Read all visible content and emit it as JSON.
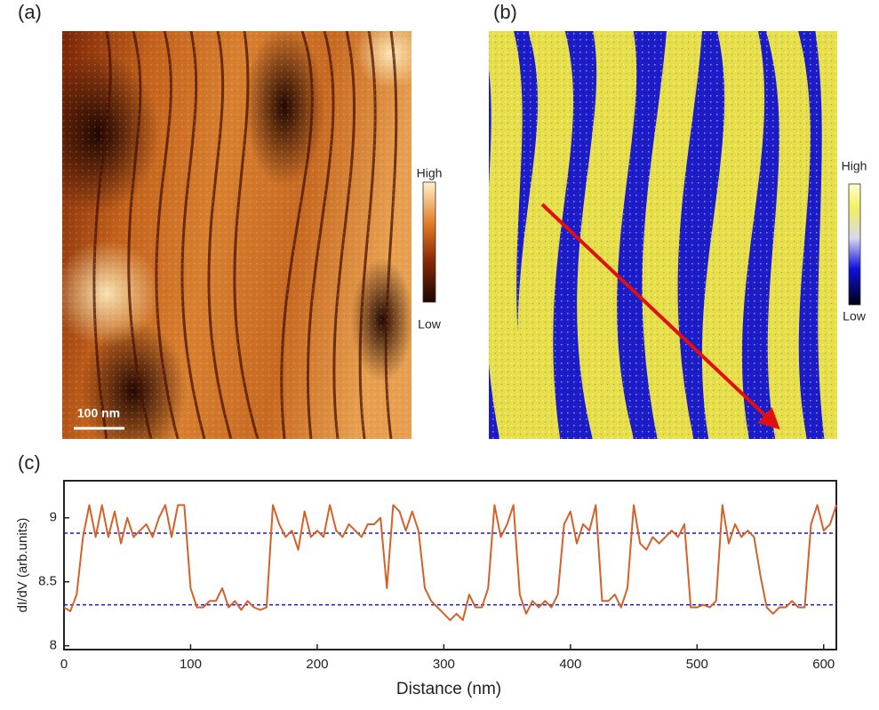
{
  "panels": {
    "a": {
      "label": "(a)",
      "scale_bar": "100 nm",
      "colorbar": {
        "high": "High",
        "low": "Low"
      }
    },
    "b": {
      "label": "(b)",
      "colorbar": {
        "high": "High",
        "low": "Low"
      }
    },
    "c": {
      "label": "(c)"
    }
  },
  "chart_data": {
    "type": "line",
    "x_label": "Distance (nm)",
    "y_label": "dI/dV (arb.units)",
    "color": "#d2622a",
    "x": [
      0,
      5,
      10,
      15,
      20,
      25,
      30,
      35,
      40,
      45,
      50,
      55,
      60,
      65,
      70,
      75,
      80,
      85,
      90,
      95,
      100,
      105,
      110,
      115,
      120,
      125,
      130,
      135,
      140,
      145,
      150,
      155,
      160,
      165,
      170,
      175,
      180,
      185,
      190,
      195,
      200,
      205,
      210,
      215,
      220,
      225,
      230,
      235,
      240,
      245,
      250,
      255,
      260,
      265,
      270,
      275,
      280,
      285,
      290,
      295,
      300,
      305,
      310,
      315,
      320,
      325,
      330,
      335,
      340,
      345,
      350,
      355,
      360,
      365,
      370,
      375,
      380,
      385,
      390,
      395,
      400,
      405,
      410,
      415,
      420,
      425,
      430,
      435,
      440,
      445,
      450,
      455,
      460,
      465,
      470,
      475,
      480,
      485,
      490,
      495,
      500,
      505,
      510,
      515,
      520,
      525,
      530,
      535,
      540,
      545,
      550,
      555,
      560,
      565,
      570,
      575,
      580,
      585,
      590,
      595,
      600,
      605,
      610
    ],
    "values": [
      8.3,
      8.27,
      8.4,
      8.85,
      9.1,
      8.85,
      9.1,
      8.85,
      9.05,
      8.8,
      9.0,
      8.85,
      8.9,
      8.95,
      8.85,
      9.0,
      9.1,
      8.85,
      9.1,
      9.1,
      8.45,
      8.3,
      8.3,
      8.35,
      8.35,
      8.45,
      8.3,
      8.35,
      8.28,
      8.35,
      8.3,
      8.28,
      8.3,
      9.1,
      8.95,
      8.85,
      8.9,
      8.75,
      9.05,
      8.85,
      8.9,
      8.85,
      9.1,
      8.9,
      8.85,
      8.95,
      8.9,
      8.85,
      8.95,
      8.95,
      9.0,
      8.45,
      9.1,
      9.05,
      8.9,
      9.05,
      8.9,
      8.45,
      8.35,
      8.3,
      8.25,
      8.2,
      8.25,
      8.2,
      8.4,
      8.3,
      8.3,
      8.45,
      9.1,
      8.85,
      8.95,
      9.1,
      8.4,
      8.25,
      8.35,
      8.3,
      8.35,
      8.3,
      8.4,
      8.95,
      9.05,
      8.8,
      8.95,
      8.9,
      9.1,
      8.35,
      8.35,
      8.4,
      8.3,
      8.45,
      9.1,
      8.8,
      8.75,
      8.85,
      8.8,
      8.85,
      8.9,
      8.85,
      8.95,
      8.3,
      8.3,
      8.32,
      8.3,
      8.35,
      9.1,
      8.8,
      8.95,
      8.85,
      8.9,
      8.85,
      8.55,
      8.3,
      8.25,
      8.3,
      8.3,
      8.35,
      8.3,
      8.3,
      8.95,
      9.1,
      8.9,
      8.95,
      9.1
    ],
    "xlim": [
      0,
      610
    ],
    "ylim": [
      7.97,
      9.29
    ],
    "xticks": [
      0,
      100,
      200,
      300,
      400,
      500,
      600
    ],
    "yticks": [
      8,
      8.5,
      9
    ],
    "reference_lines": {
      "values": [
        8.88,
        8.32
      ],
      "color": "#1a1acc",
      "style": "dashed"
    }
  }
}
